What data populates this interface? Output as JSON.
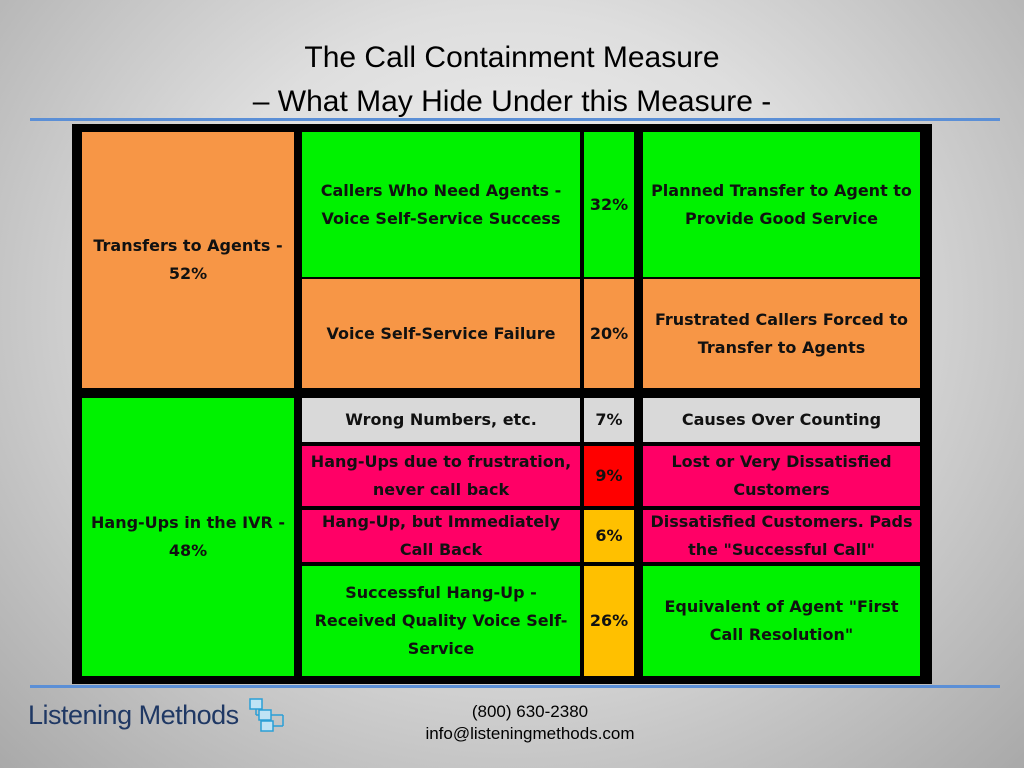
{
  "title": {
    "line1": "The Call Containment Measure",
    "line2": "– What May Hide Under this Measure -"
  },
  "table": {
    "transfers_label": "Transfers to Agents - 52%",
    "hangups_label": "Hang-Ups in the IVR - 48%",
    "rows": [
      {
        "category": "Callers Who Need Agents - Voice Self-Service Success",
        "percent": "32%",
        "meaning": "Planned Transfer to Agent to Provide Good Service",
        "color": "#00f200",
        "percent_color": "#00f200"
      },
      {
        "category": "Voice Self-Service Failure",
        "percent": "20%",
        "meaning": "Frustrated Callers Forced to Transfer to Agents",
        "color": "#f79646",
        "percent_color": "#f79646"
      },
      {
        "category": "Wrong Numbers, etc.",
        "percent": "7%",
        "meaning": "Causes Over Counting",
        "color": "#d9d9d9",
        "percent_color": "#d9d9d9"
      },
      {
        "category": "Hang-Ups due to frustration, never call back",
        "percent": "9%",
        "meaning": "Lost or Very Dissatisfied Customers",
        "color": "#ff0066",
        "percent_color": "#ff0000"
      },
      {
        "category": "Hang-Up, but Immediately Call Back",
        "percent": "6%",
        "meaning": "Dissatisfied Customers. Pads the \"Successful Call\"",
        "color": "#ff0066",
        "percent_color": "#ffc000"
      },
      {
        "category": "Successful Hang-Up - Received Quality Voice Self-Service",
        "percent": "26%",
        "meaning": "Equivalent of Agent \"First Call Resolution\"",
        "color": "#00f200",
        "percent_color": "#ffc000"
      }
    ]
  },
  "footer": {
    "logo_text": "Listening Methods",
    "phone": "(800) 630-2380",
    "email": "info@listeningmethods.com"
  }
}
